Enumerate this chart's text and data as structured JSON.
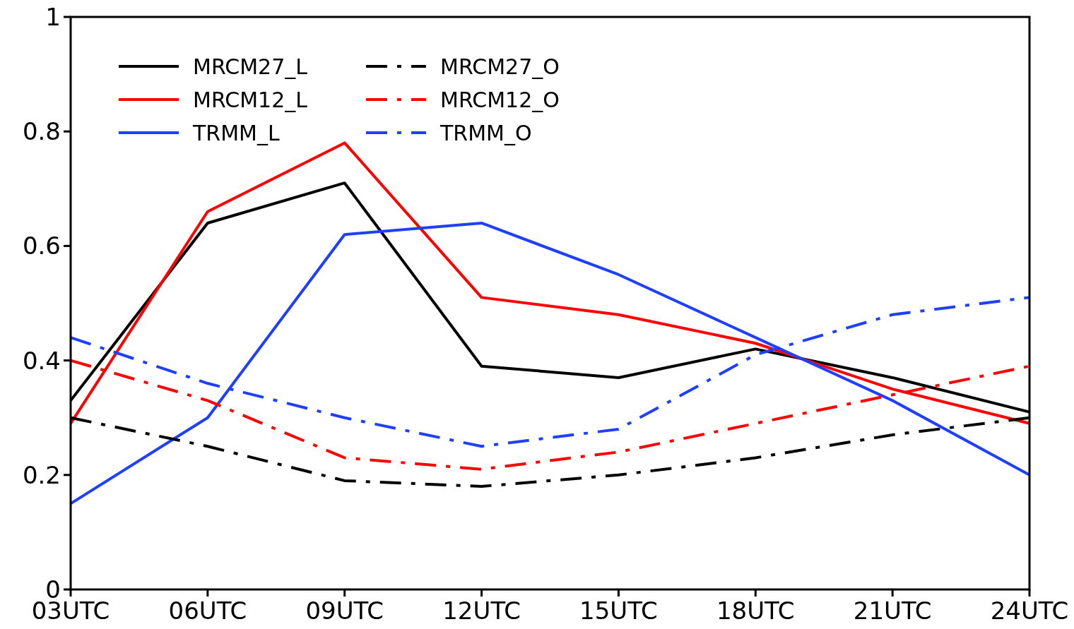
{
  "chart_data": {
    "type": "line",
    "categories": [
      "03UTC",
      "06UTC",
      "09UTC",
      "12UTC",
      "15UTC",
      "18UTC",
      "21UTC",
      "24UTC"
    ],
    "ylim": [
      0,
      1
    ],
    "yticks": [
      0,
      0.2,
      0.4,
      0.6,
      0.8,
      1
    ],
    "grid": false,
    "legend": "top left",
    "marker": "none",
    "series": [
      {
        "name": "MRCM27_L",
        "color": "#000000",
        "line_style": "solid",
        "values": [
          0.33,
          0.64,
          0.71,
          0.39,
          0.37,
          0.42,
          0.37,
          0.31
        ]
      },
      {
        "name": "MRCM12_L",
        "color": "#ff0000",
        "line_style": "solid",
        "values": [
          0.29,
          0.66,
          0.78,
          0.51,
          0.48,
          0.43,
          0.35,
          0.29
        ]
      },
      {
        "name": "TRMM_L",
        "color": "#1f3fff",
        "line_style": "solid",
        "values": [
          0.15,
          0.3,
          0.62,
          0.64,
          0.55,
          0.44,
          0.33,
          0.2
        ]
      },
      {
        "name": "MRCM27_O",
        "color": "#000000",
        "line_style": "dashed",
        "values": [
          0.3,
          0.25,
          0.19,
          0.18,
          0.2,
          0.23,
          0.27,
          0.3
        ]
      },
      {
        "name": "MRCM12_O",
        "color": "#ff0000",
        "line_style": "dashed",
        "values": [
          0.4,
          0.33,
          0.23,
          0.21,
          0.24,
          0.29,
          0.34,
          0.39
        ]
      },
      {
        "name": "TRMM_O",
        "color": "#1f3fff",
        "line_style": "dashed",
        "values": [
          0.44,
          0.36,
          0.3,
          0.25,
          0.28,
          0.41,
          0.48,
          0.51
        ]
      }
    ]
  }
}
